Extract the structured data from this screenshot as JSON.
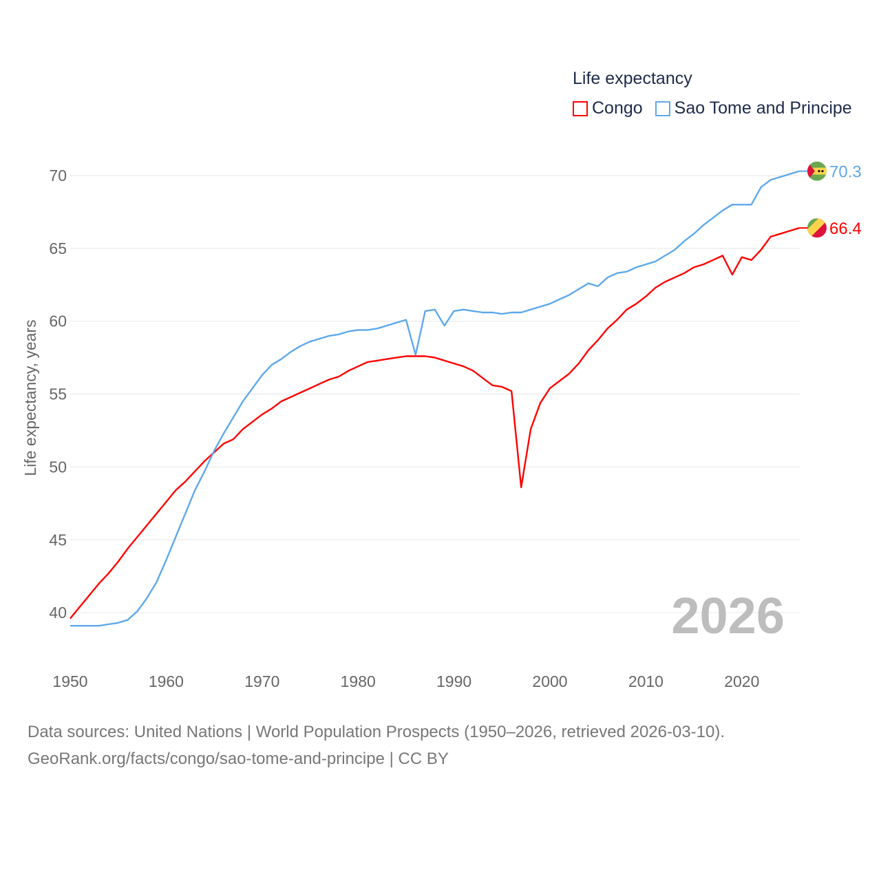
{
  "colors": {
    "congo": "#ff0000",
    "stp": "#5ea8ea",
    "grid": "#e6e6e6",
    "axis_text": "#666666",
    "year_watermark": "#bdbdbd"
  },
  "legend": {
    "title": "Life expectancy",
    "items": [
      "Congo",
      "Sao Tome and Principe"
    ]
  },
  "year_label": "2026",
  "source": {
    "line1": "Data sources: United Nations | World Population Prospects (1950–2026, retrieved 2026-03-10).",
    "line2": "GeoRank.org/facts/congo/sao-tome-and-principe | CC BY"
  },
  "chart_data": {
    "type": "line",
    "title": "Life expectancy",
    "xlabel": "",
    "ylabel": "Life expectancy, years",
    "xlim": [
      1950,
      2026
    ],
    "ylim": [
      37.5,
      72
    ],
    "x_ticks": [
      1950,
      1960,
      1970,
      1980,
      1990,
      2000,
      2010,
      2020
    ],
    "y_ticks": [
      40,
      45,
      50,
      55,
      60,
      65,
      70
    ],
    "grid": true,
    "legend_position": "top-right",
    "x_start": 1950,
    "series": [
      {
        "name": "Congo",
        "color": "#ff0000",
        "end_label": "66.4",
        "values": [
          39.6,
          40.4,
          41.2,
          42.0,
          42.7,
          43.5,
          44.4,
          45.2,
          46.0,
          46.8,
          47.6,
          48.4,
          49.0,
          49.7,
          50.4,
          51.0,
          51.6,
          51.9,
          52.6,
          53.1,
          53.6,
          54.0,
          54.5,
          54.8,
          55.1,
          55.4,
          55.7,
          56.0,
          56.2,
          56.6,
          56.9,
          57.2,
          57.3,
          57.4,
          57.5,
          57.6,
          57.6,
          57.6,
          57.5,
          57.3,
          57.1,
          56.9,
          56.6,
          56.1,
          55.6,
          55.5,
          55.2,
          48.6,
          52.6,
          54.4,
          55.4,
          55.9,
          56.4,
          57.1,
          58.0,
          58.7,
          59.5,
          60.1,
          60.8,
          61.2,
          61.7,
          62.3,
          62.7,
          63.0,
          63.3,
          63.7,
          63.9,
          64.2,
          64.5,
          63.2,
          64.4,
          64.2,
          64.9,
          65.8,
          66.0,
          66.2,
          66.4
        ]
      },
      {
        "name": "Sao Tome and Principe",
        "color": "#5ea8ea",
        "end_label": "70.3",
        "values": [
          39.1,
          39.1,
          39.1,
          39.1,
          39.2,
          39.3,
          39.5,
          40.1,
          41.0,
          42.1,
          43.6,
          45.2,
          46.8,
          48.4,
          49.7,
          51.1,
          52.3,
          53.4,
          54.5,
          55.4,
          56.3,
          57.0,
          57.4,
          57.9,
          58.3,
          58.6,
          58.8,
          59.0,
          59.1,
          59.3,
          59.4,
          59.4,
          59.5,
          59.7,
          59.9,
          60.1,
          57.7,
          60.7,
          60.8,
          59.7,
          60.7,
          60.8,
          60.7,
          60.6,
          60.6,
          60.5,
          60.6,
          60.6,
          60.8,
          61.0,
          61.2,
          61.5,
          61.8,
          62.2,
          62.6,
          62.4,
          63.0,
          63.3,
          63.4,
          63.7,
          63.9,
          64.1,
          64.5,
          64.9,
          65.5,
          66.0,
          66.6,
          67.1,
          67.6,
          68.0,
          68.0,
          68.0,
          69.2,
          69.7,
          69.9,
          70.1,
          70.3
        ]
      }
    ]
  }
}
